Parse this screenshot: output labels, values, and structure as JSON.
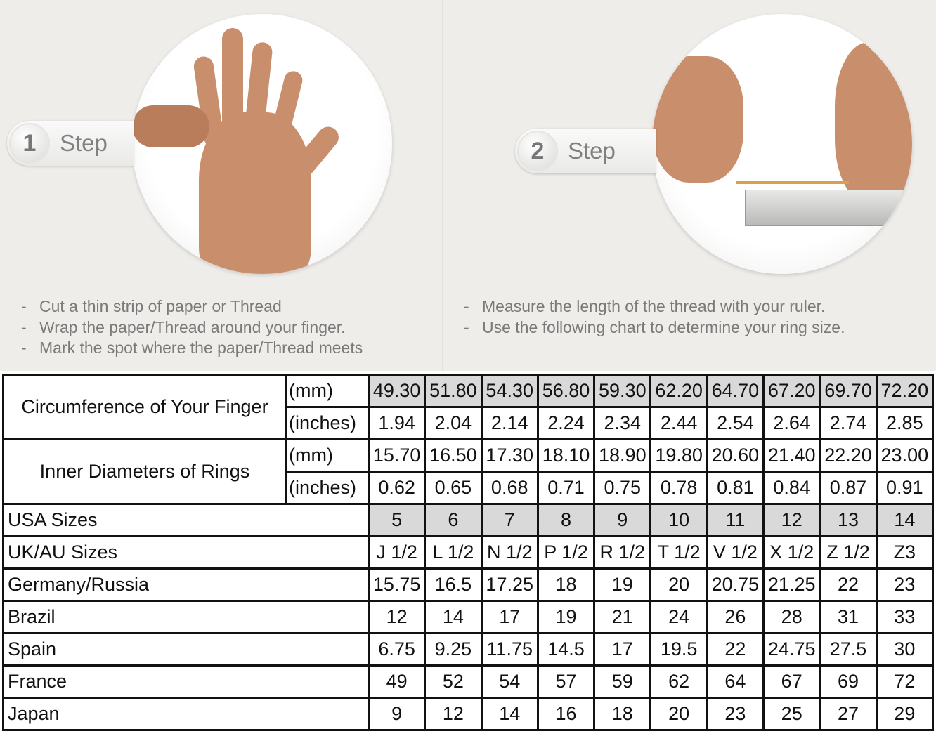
{
  "steps": [
    {
      "number": "1",
      "label": "Step",
      "instructions": [
        "Cut a thin strip of paper or Thread",
        "Wrap the paper/Thread around your finger.",
        "Mark the spot where the paper/Thread meets"
      ]
    },
    {
      "number": "2",
      "label": "Step",
      "instructions": [
        "Measure the length of the thread with your ruler.",
        "Use the following chart to determine your ring size."
      ]
    }
  ],
  "bullet": "-",
  "table": {
    "groups": [
      {
        "label": "Circumference of Your Finger",
        "rows": [
          {
            "unit": "(mm)",
            "grey": true,
            "values": [
              "49.30",
              "51.80",
              "54.30",
              "56.80",
              "59.30",
              "62.20",
              "64.70",
              "67.20",
              "69.70",
              "72.20"
            ]
          },
          {
            "unit": "(inches)",
            "grey": false,
            "values": [
              "1.94",
              "2.04",
              "2.14",
              "2.24",
              "2.34",
              "2.44",
              "2.54",
              "2.64",
              "2.74",
              "2.85"
            ]
          }
        ]
      },
      {
        "label": "Inner Diameters of Rings",
        "rows": [
          {
            "unit": "(mm)",
            "grey": false,
            "values": [
              "15.70",
              "16.50",
              "17.30",
              "18.10",
              "18.90",
              "19.80",
              "20.60",
              "21.40",
              "22.20",
              "23.00"
            ]
          },
          {
            "unit": "(inches)",
            "grey": false,
            "values": [
              "0.62",
              "0.65",
              "0.68",
              "0.71",
              "0.75",
              "0.78",
              "0.81",
              "0.84",
              "0.87",
              "0.91"
            ]
          }
        ]
      }
    ],
    "rows": [
      {
        "label": "USA Sizes",
        "grey": true,
        "values": [
          "5",
          "6",
          "7",
          "8",
          "9",
          "10",
          "11",
          "12",
          "13",
          "14"
        ]
      },
      {
        "label": "UK/AU Sizes",
        "grey": false,
        "values": [
          "J 1/2",
          "L 1/2",
          "N 1/2",
          "P 1/2",
          "R 1/2",
          "T 1/2",
          "V 1/2",
          "X 1/2",
          "Z 1/2",
          "Z3"
        ]
      },
      {
        "label": "Germany/Russia",
        "grey": false,
        "values": [
          "15.75",
          "16.5",
          "17.25",
          "18",
          "19",
          "20",
          "20.75",
          "21.25",
          "22",
          "23"
        ]
      },
      {
        "label": "Brazil",
        "grey": false,
        "values": [
          "12",
          "14",
          "17",
          "19",
          "21",
          "24",
          "26",
          "28",
          "31",
          "33"
        ]
      },
      {
        "label": "Spain",
        "grey": false,
        "values": [
          "6.75",
          "9.25",
          "11.75",
          "14.5",
          "17",
          "19.5",
          "22",
          "24.75",
          "27.5",
          "30"
        ]
      },
      {
        "label": "France",
        "grey": false,
        "values": [
          "49",
          "52",
          "54",
          "57",
          "59",
          "62",
          "64",
          "67",
          "69",
          "72"
        ]
      },
      {
        "label": "Japan",
        "grey": false,
        "values": [
          "9",
          "12",
          "14",
          "16",
          "18",
          "20",
          "23",
          "25",
          "27",
          "29"
        ]
      }
    ],
    "colors": {
      "grey_cell": "#d9d9d9",
      "border": "#111111"
    }
  }
}
